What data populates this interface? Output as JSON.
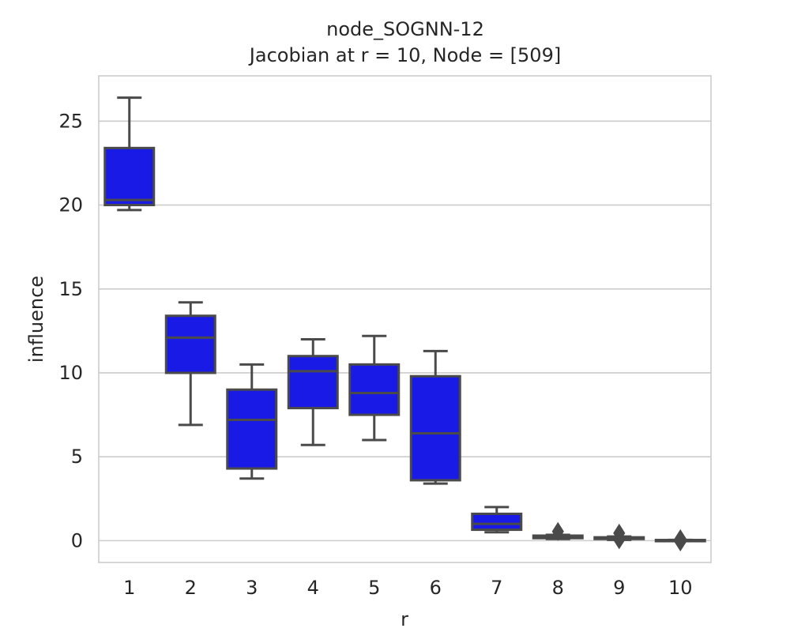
{
  "chart_data": {
    "type": "box",
    "title": "node_SOGNN-12",
    "subtitle": "Jacobian at r = 10, Node = [509]",
    "xlabel": "r",
    "ylabel": "influence",
    "categories": [
      "1",
      "2",
      "3",
      "4",
      "5",
      "6",
      "7",
      "8",
      "9",
      "10"
    ],
    "ylim": [
      -1.3,
      27.7
    ],
    "yticks": [
      0,
      5,
      10,
      15,
      20,
      25
    ],
    "grid": "horizontal",
    "box_color": "#1a1ae6",
    "edge_color": "#4a4a4a",
    "boxes": [
      {
        "whislo": 19.7,
        "q1": 20.0,
        "med": 20.3,
        "q3": 23.4,
        "whishi": 26.4,
        "fliers": []
      },
      {
        "whislo": 6.9,
        "q1": 10.0,
        "med": 12.1,
        "q3": 13.4,
        "whishi": 14.2,
        "fliers": []
      },
      {
        "whislo": 3.7,
        "q1": 4.3,
        "med": 7.2,
        "q3": 9.0,
        "whishi": 10.5,
        "fliers": []
      },
      {
        "whislo": 5.7,
        "q1": 7.9,
        "med": 10.1,
        "q3": 11.0,
        "whishi": 12.0,
        "fliers": []
      },
      {
        "whislo": 6.0,
        "q1": 7.5,
        "med": 8.8,
        "q3": 10.5,
        "whishi": 12.2,
        "fliers": []
      },
      {
        "whislo": 3.4,
        "q1": 3.6,
        "med": 6.4,
        "q3": 9.8,
        "whishi": 11.3,
        "fliers": []
      },
      {
        "whislo": 0.5,
        "q1": 0.65,
        "med": 1.0,
        "q3": 1.6,
        "whishi": 2.0,
        "fliers": []
      },
      {
        "whislo": 0.1,
        "q1": 0.15,
        "med": 0.2,
        "q3": 0.3,
        "whishi": 0.35,
        "fliers": [
          0.55
        ]
      },
      {
        "whislo": 0.05,
        "q1": 0.1,
        "med": 0.15,
        "q3": 0.2,
        "whishi": 0.25,
        "fliers": [
          0.45,
          0.05
        ]
      },
      {
        "whislo": 0.0,
        "q1": 0.01,
        "med": 0.02,
        "q3": 0.04,
        "whishi": 0.05,
        "fliers": [
          0.12,
          -0.08
        ]
      }
    ]
  }
}
